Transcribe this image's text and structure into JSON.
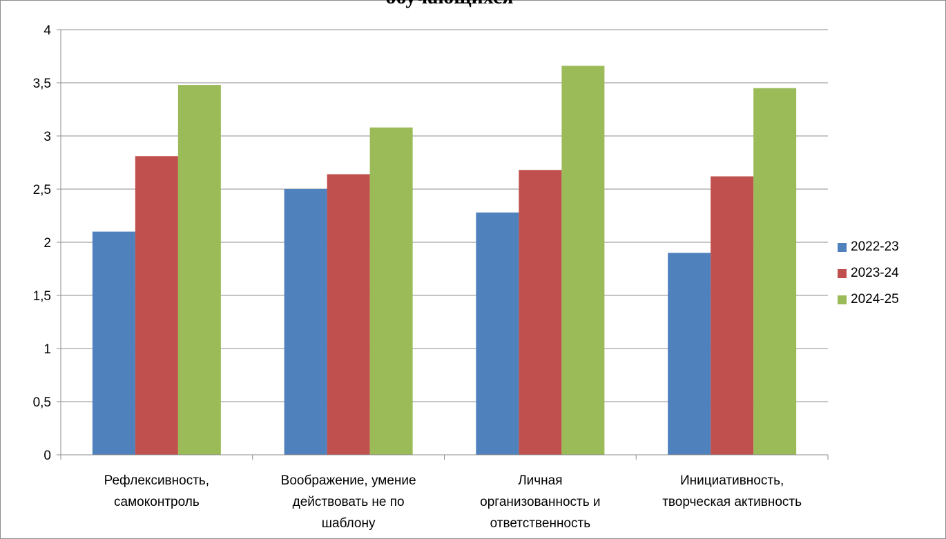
{
  "chart_data": {
    "type": "bar",
    "title": "обучающихся",
    "categories": [
      [
        "Рефлексивность,",
        "самоконтроль"
      ],
      [
        "Воображение, умение",
        "действовать не по",
        "шаблону"
      ],
      [
        "Личная",
        "организованность и",
        "ответственность"
      ],
      [
        "Инициативность,",
        "творческая активность"
      ]
    ],
    "series": [
      {
        "name": "2022-23",
        "color": "#4f81bd",
        "values": [
          2.1,
          2.5,
          2.28,
          1.9
        ]
      },
      {
        "name": "2023-24",
        "color": "#c0504d",
        "values": [
          2.81,
          2.64,
          2.68,
          2.62
        ]
      },
      {
        "name": "2024-25",
        "color": "#9bbb59",
        "values": [
          3.48,
          3.08,
          3.66,
          3.45
        ]
      }
    ],
    "yticks": [
      "0",
      "0,5",
      "1",
      "1,5",
      "2",
      "2,5",
      "3",
      "3,5",
      "4"
    ],
    "ylim": [
      0,
      4
    ],
    "grid": true,
    "legend_position": "right"
  }
}
